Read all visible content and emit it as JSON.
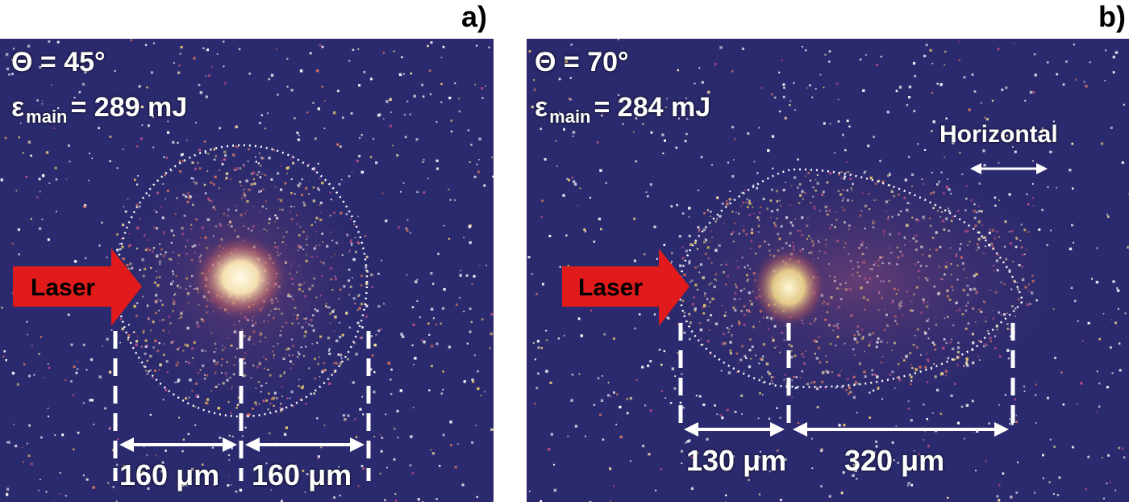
{
  "panels": [
    {
      "letter": "a)",
      "angle": "Θ = 45°",
      "energy_symbol": "ε",
      "energy_sub": "main",
      "energy_value": "= 289 mJ",
      "laser_label": "Laser",
      "dim_left": "160 μm",
      "dim_right": "160 μm"
    },
    {
      "letter": "b)",
      "angle": "Θ = 70°",
      "energy_symbol": "ε",
      "energy_sub": "main",
      "energy_value": "= 284 mJ",
      "laser_label": "Laser",
      "polarization": "Horizontal",
      "dim_left": "130 μm",
      "dim_right": "320 μm"
    }
  ],
  "colors": {
    "background": "#2b2a6e",
    "arrow": "#e11b1b",
    "annotation": "#ffffff",
    "hotspot": "#fff7d6"
  }
}
